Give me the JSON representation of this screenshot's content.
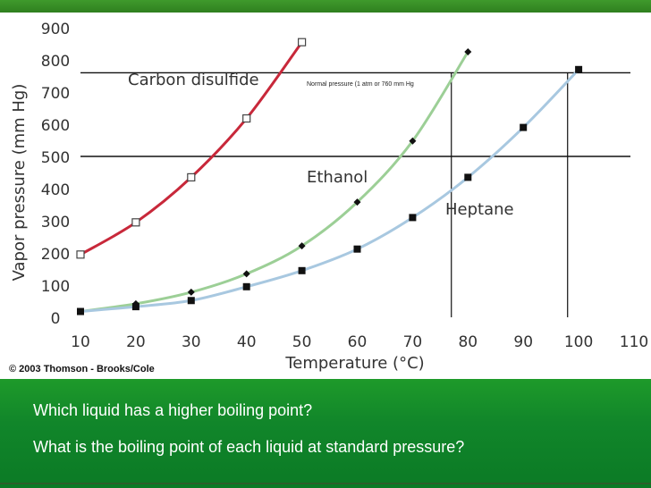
{
  "questions": [
    "Which liquid has a higher boiling point?",
    "What is the boiling point of each liquid at standard pressure?"
  ],
  "copyright": "© 2003 Thomson - Brooks/Cole",
  "chart_data": {
    "type": "line",
    "xlabel": "Temperature (°C)",
    "ylabel": "Vapor pressure (mm Hg)",
    "xlim": [
      10,
      110
    ],
    "ylim": [
      0,
      900
    ],
    "xticks": [
      10,
      20,
      30,
      40,
      50,
      60,
      70,
      80,
      90,
      100,
      110
    ],
    "yticks": [
      0,
      100,
      200,
      300,
      400,
      500,
      600,
      700,
      800,
      900
    ],
    "grid": false,
    "annotations": {
      "normal_pressure": "Normal pressure (1 atm or 760 mm Hg"
    },
    "reference_lines": {
      "horizontal": [
        760,
        500
      ],
      "vertical": [
        77,
        98
      ]
    },
    "series": [
      {
        "name": "Carbon disulfide",
        "color": "#c8283a",
        "marker": "open-square",
        "x": [
          10,
          20,
          30,
          40,
          50
        ],
        "y": [
          195,
          295,
          435,
          618,
          855
        ]
      },
      {
        "name": "Ethanol",
        "color": "#9ccf96",
        "marker": "diamond",
        "x": [
          10,
          20,
          30,
          40,
          50,
          60,
          70,
          80
        ],
        "y": [
          18,
          42,
          78,
          135,
          222,
          358,
          548,
          825
        ]
      },
      {
        "name": "Heptane",
        "color": "#a8c8e0",
        "marker": "square",
        "x": [
          10,
          20,
          30,
          40,
          50,
          60,
          70,
          80,
          90,
          100
        ],
        "y": [
          18,
          33,
          52,
          95,
          145,
          212,
          310,
          435,
          590,
          770
        ]
      }
    ]
  }
}
